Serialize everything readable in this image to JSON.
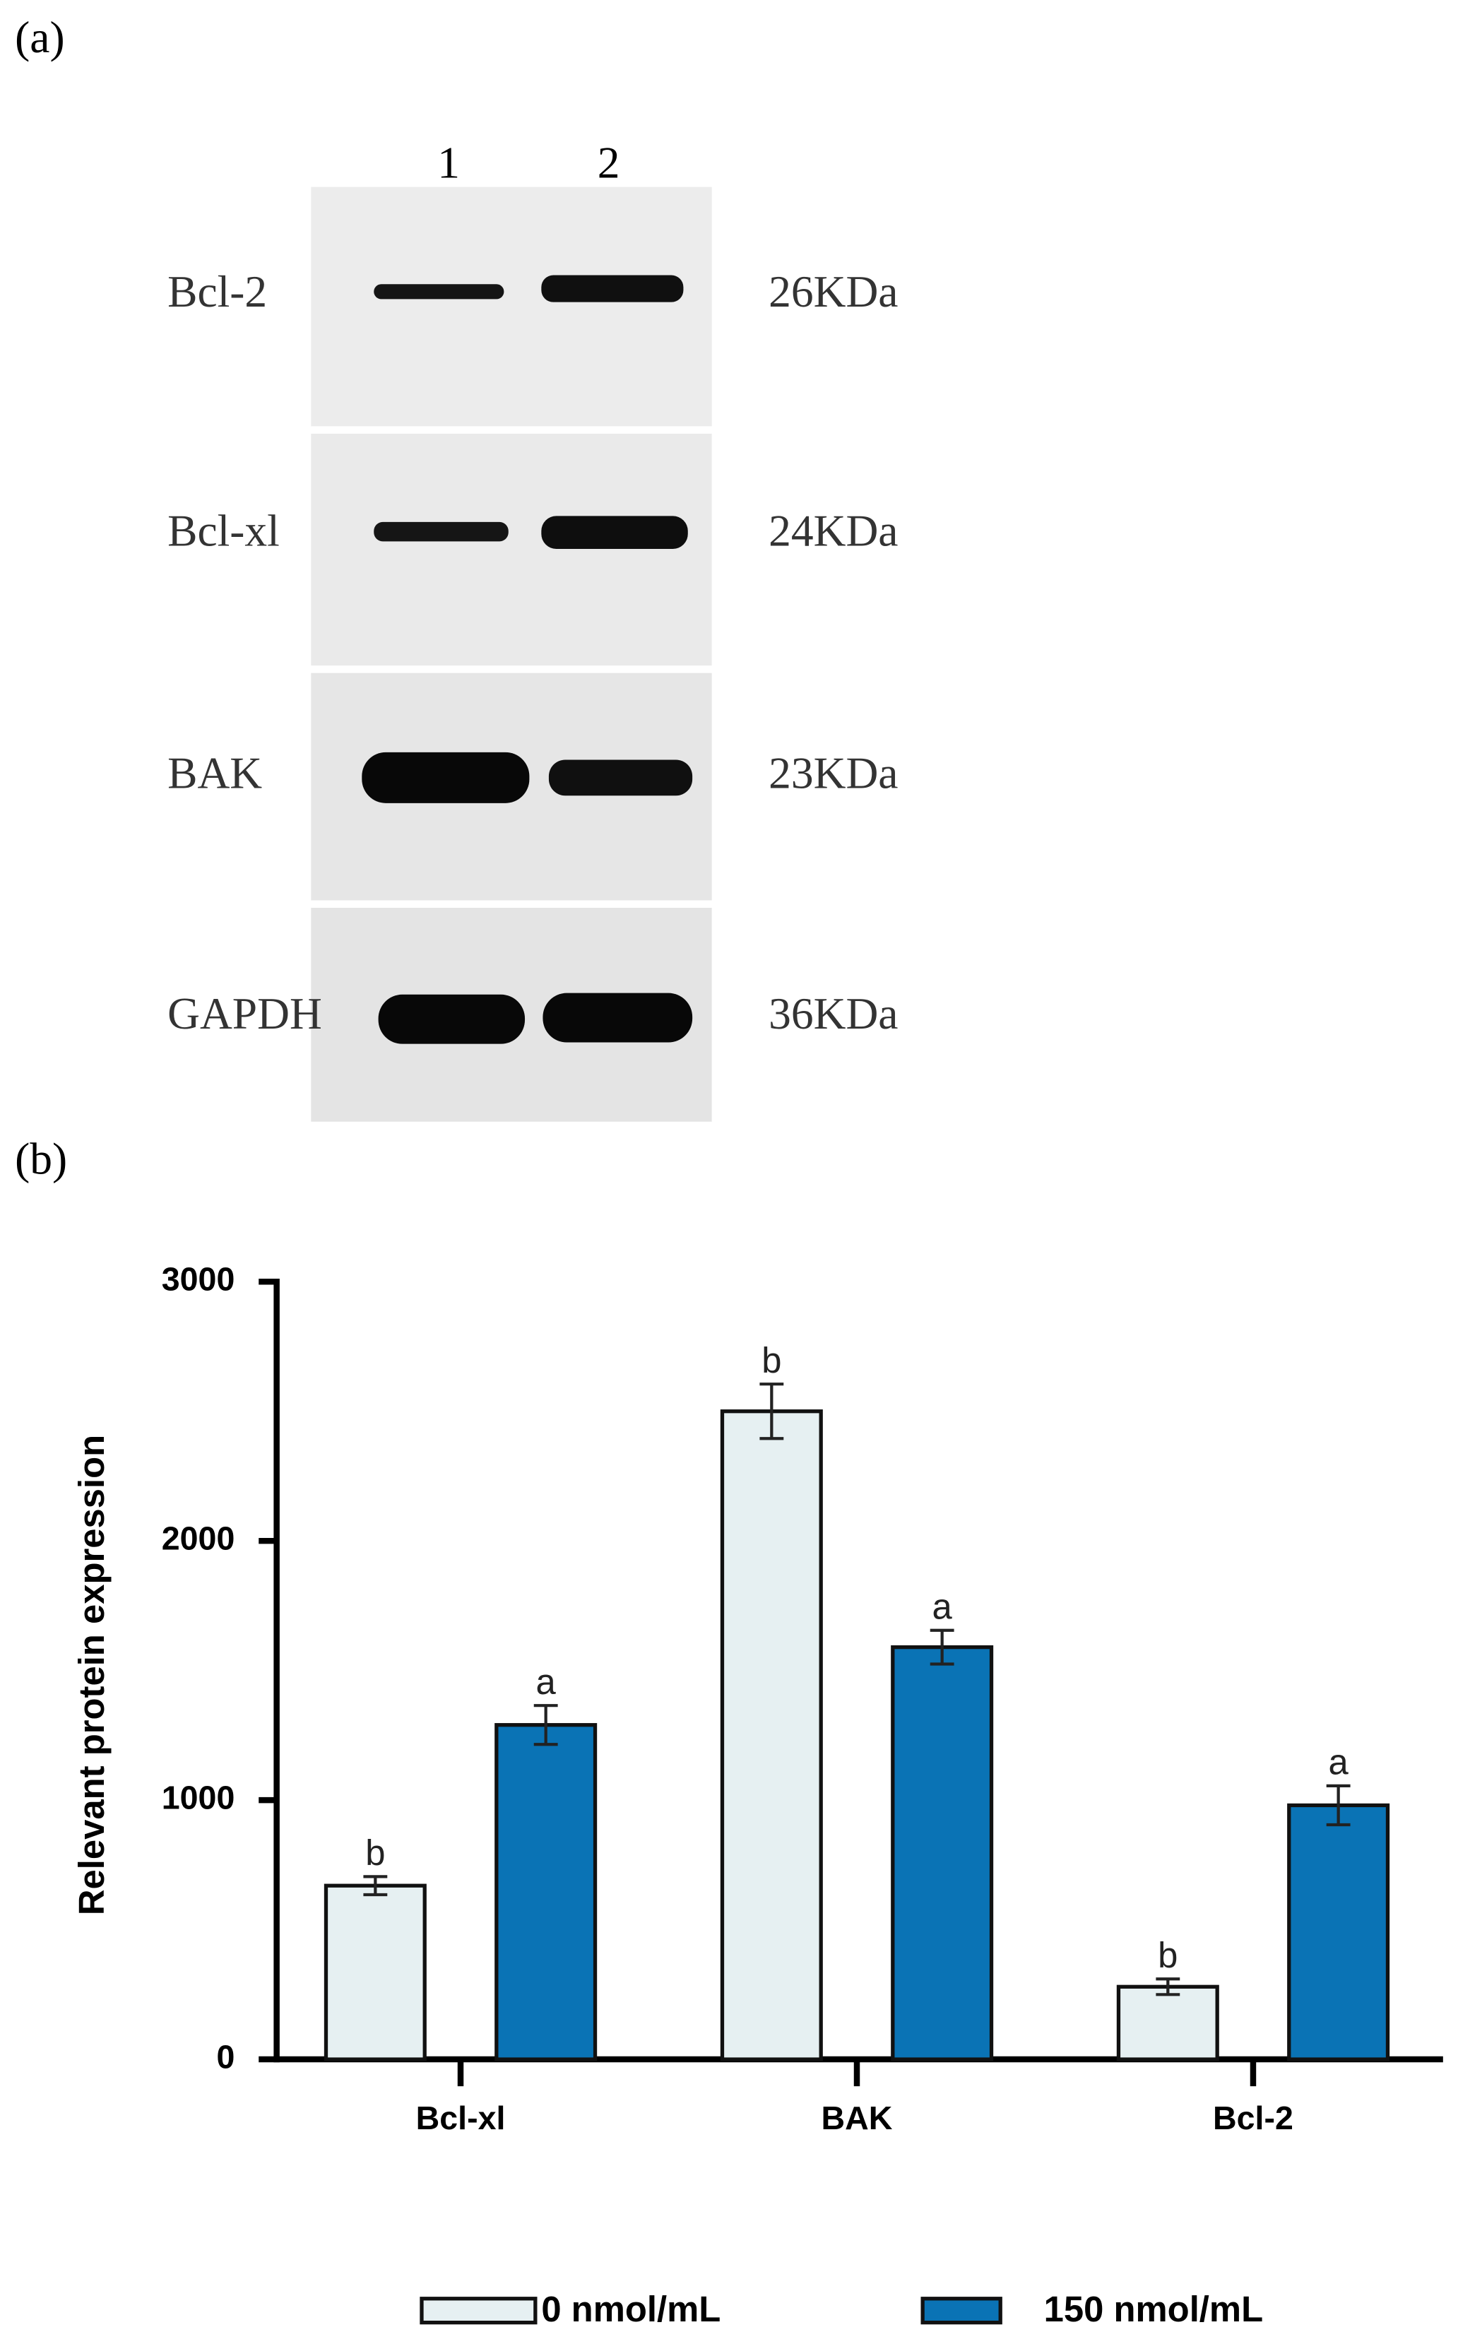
{
  "panels": {
    "a": "(a)",
    "b": "(b)"
  },
  "blot": {
    "lanes": [
      "1",
      "2"
    ],
    "rows": [
      {
        "protein": "Bcl-2",
        "size": "26KDa"
      },
      {
        "protein": "Bcl-xl",
        "size": "24KDa"
      },
      {
        "protein": "BAK",
        "size": "23KDa"
      },
      {
        "protein": "GAPDH",
        "size": "36KDa"
      }
    ]
  },
  "chart_data": {
    "type": "bar",
    "y_label": "Relevant protein expression",
    "categories": [
      "Bcl-xl",
      "BAK",
      "Bcl-2"
    ],
    "series": [
      {
        "name": "0 nmol/mL",
        "color": "#e6f0f2",
        "values": [
          670,
          2500,
          280
        ],
        "errors": [
          35,
          105,
          30
        ],
        "annotations": [
          "b",
          "b",
          "b"
        ]
      },
      {
        "name": "150 nmol/mL",
        "color": "#0a73b5",
        "values": [
          1290,
          1590,
          980
        ],
        "errors": [
          75,
          65,
          75
        ],
        "annotations": [
          "a",
          "a",
          "a"
        ]
      }
    ],
    "ylim": [
      0,
      3000
    ],
    "yticks": [
      0,
      1000,
      2000,
      3000
    ],
    "legend": "bottom"
  }
}
